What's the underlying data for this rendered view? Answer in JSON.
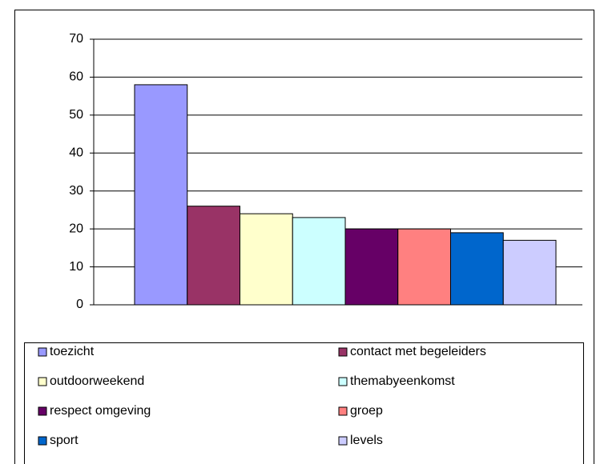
{
  "chart_data": {
    "type": "bar",
    "categories": [
      null
    ],
    "series": [
      {
        "name": "toezicht",
        "color": "#9999ff",
        "values": [
          58
        ]
      },
      {
        "name": "contact met begeleiders",
        "color": "#993366",
        "values": [
          26
        ]
      },
      {
        "name": "outdoorweekend",
        "color": "#ffffcc",
        "values": [
          24
        ]
      },
      {
        "name": "themabyeenkomst",
        "color": "#ccffff",
        "values": [
          23
        ]
      },
      {
        "name": "respect omgeving",
        "color": "#660066",
        "values": [
          20
        ]
      },
      {
        "name": "groep",
        "color": "#ff8080",
        "values": [
          20
        ]
      },
      {
        "name": "sport",
        "color": "#0066cc",
        "values": [
          19
        ]
      },
      {
        "name": "levels",
        "color": "#ccccff",
        "values": [
          17
        ]
      }
    ],
    "ylim": [
      0,
      70
    ],
    "yticks": [
      0,
      10,
      20,
      30,
      40,
      50,
      60,
      70
    ],
    "grid": true,
    "legend": "bottom"
  }
}
